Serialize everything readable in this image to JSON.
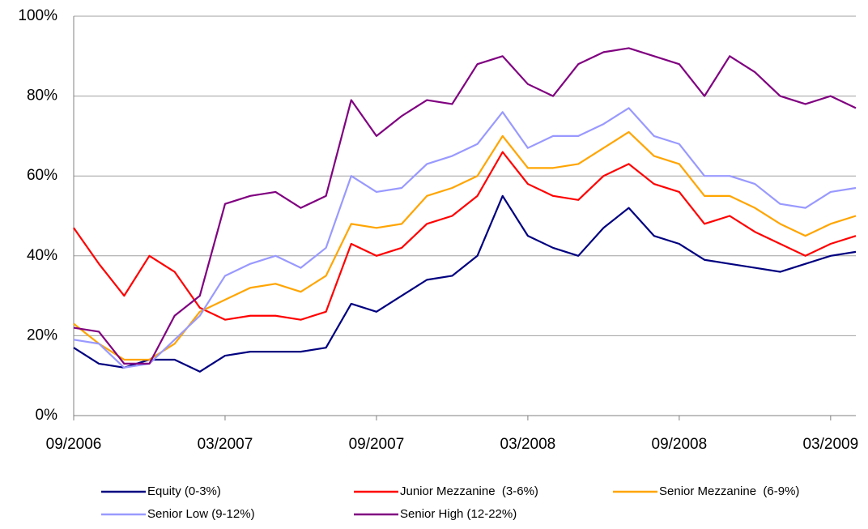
{
  "chart_data": {
    "type": "line",
    "x": [
      "09/2006",
      "10/2006",
      "11/2006",
      "12/2006",
      "01/2007",
      "02/2007",
      "03/2007",
      "04/2007",
      "05/2007",
      "06/2007",
      "07/2007",
      "08/2007",
      "09/2007",
      "10/2007",
      "11/2007",
      "12/2007",
      "01/2008",
      "02/2008",
      "03/2008",
      "04/2008",
      "05/2008",
      "06/2008",
      "07/2008",
      "08/2008",
      "09/2008",
      "10/2008",
      "11/2008",
      "12/2008",
      "01/2009",
      "02/2009",
      "03/2009",
      "04/2009"
    ],
    "xlim": [
      "09/2006",
      "04/2009"
    ],
    "xticks": [
      "09/2006",
      "03/2007",
      "09/2007",
      "03/2008",
      "09/2008",
      "03/2009"
    ],
    "ylim": [
      0,
      100
    ],
    "yticks": [
      {
        "value": 0,
        "label": "0%"
      },
      {
        "value": 20,
        "label": "20%"
      },
      {
        "value": 40,
        "label": "40%"
      },
      {
        "value": 60,
        "label": "60%"
      },
      {
        "value": 80,
        "label": "80%"
      },
      {
        "value": 100,
        "label": "100%"
      }
    ],
    "grid": true,
    "legend": "bottom",
    "series": [
      {
        "name": "Equity (0-3%)",
        "color": "#000080",
        "values": [
          17,
          13,
          12,
          14,
          14,
          11,
          15,
          16,
          16,
          16,
          17,
          28,
          26,
          30,
          34,
          35,
          40,
          55,
          45,
          42,
          40,
          47,
          52,
          45,
          43,
          39,
          38,
          37,
          36,
          38,
          40,
          41
        ]
      },
      {
        "name": "Junior Mezzanine  (3-6%)",
        "color": "#ff0000",
        "values": [
          47,
          38,
          30,
          40,
          36,
          27,
          24,
          25,
          25,
          24,
          26,
          43,
          40,
          42,
          48,
          50,
          55,
          66,
          58,
          55,
          54,
          60,
          63,
          58,
          56,
          48,
          50,
          46,
          43,
          40,
          43,
          45
        ]
      },
      {
        "name": "Senior Mezzanine  (6-9%)",
        "color": "#ffa500",
        "values": [
          23,
          18,
          14,
          14,
          18,
          26,
          29,
          32,
          33,
          31,
          35,
          48,
          47,
          48,
          55,
          57,
          60,
          70,
          62,
          62,
          63,
          67,
          71,
          65,
          63,
          55,
          55,
          52,
          48,
          45,
          48,
          50
        ]
      },
      {
        "name": "Senior Low (9-12%)",
        "color": "#9999ff",
        "values": [
          19,
          18,
          12,
          13,
          19,
          25,
          35,
          38,
          40,
          37,
          42,
          60,
          56,
          57,
          63,
          65,
          68,
          76,
          67,
          70,
          70,
          73,
          77,
          70,
          68,
          60,
          60,
          58,
          53,
          52,
          56,
          57
        ]
      },
      {
        "name": "Senior High (12-22%)",
        "color": "#800080",
        "values": [
          22,
          21,
          13,
          13,
          25,
          30,
          53,
          55,
          56,
          52,
          55,
          79,
          70,
          75,
          79,
          78,
          88,
          90,
          83,
          80,
          88,
          91,
          92,
          90,
          88,
          80,
          90,
          86,
          80,
          78,
          80,
          77
        ]
      }
    ]
  }
}
